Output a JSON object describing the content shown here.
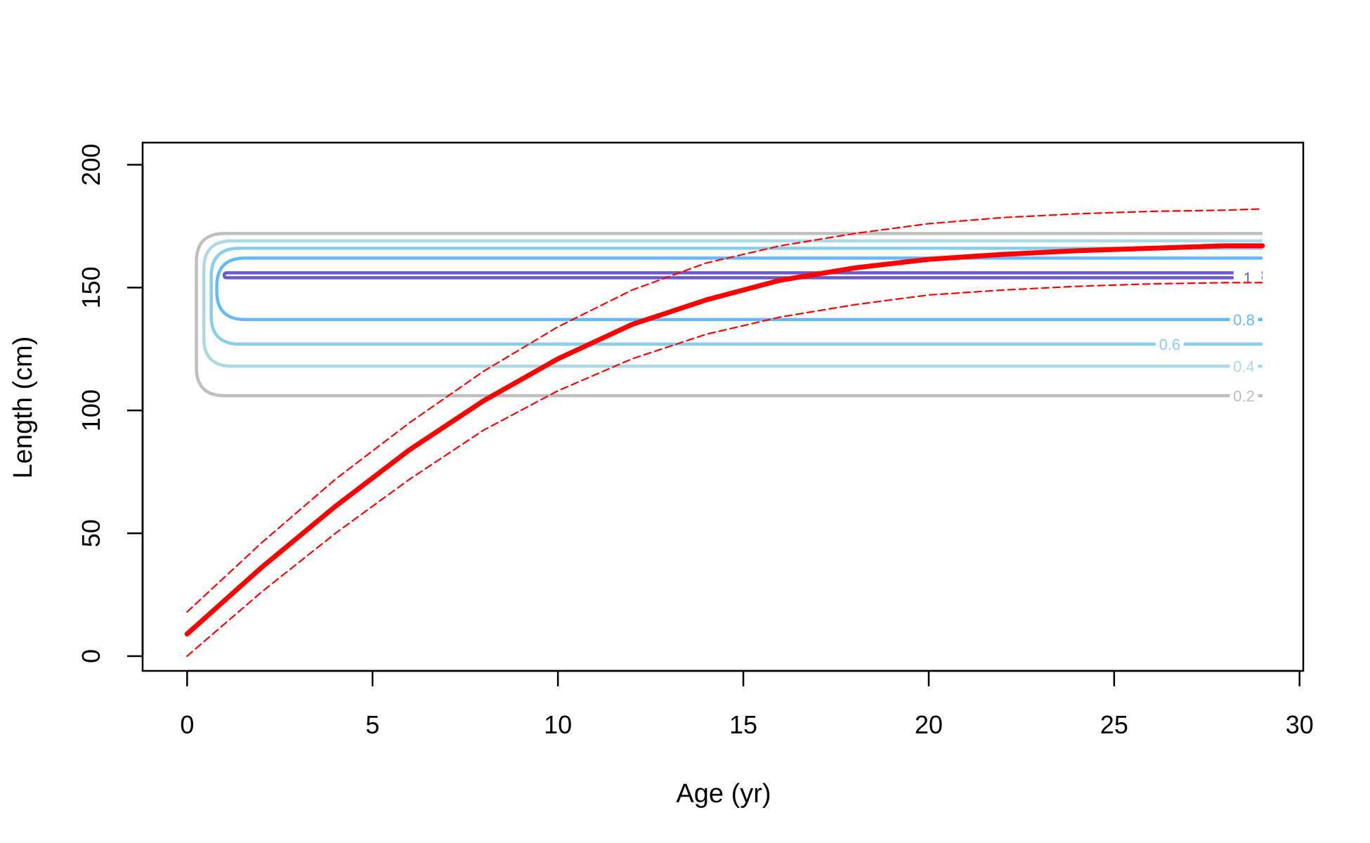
{
  "chart_data": {
    "type": "line",
    "xlabel": "Age (yr)",
    "ylabel": "Length (cm)",
    "xlim": [
      -1.2,
      30.1
    ],
    "ylim": [
      -6,
      209
    ],
    "xticks": [
      0,
      5,
      10,
      15,
      20,
      25,
      30
    ],
    "yticks": [
      0,
      50,
      100,
      150,
      200
    ],
    "grid": false,
    "series": [
      {
        "role": "mean",
        "color": "#ff0000",
        "style": "solid",
        "x": [
          0,
          2,
          4,
          6,
          8,
          10,
          12,
          14,
          16,
          18,
          20,
          22,
          24,
          26,
          28,
          29
        ],
        "y": [
          9,
          36,
          61,
          84,
          104,
          121,
          135,
          145,
          153,
          158,
          161.5,
          163.5,
          165,
          166,
          167,
          167
        ]
      },
      {
        "role": "upper",
        "color": "#ff0000",
        "style": "dashed",
        "x": [
          0,
          2,
          4,
          6,
          8,
          10,
          12,
          14,
          16,
          18,
          20,
          22,
          24,
          26,
          28,
          29
        ],
        "y": [
          18,
          46,
          72,
          95,
          116,
          134,
          149,
          160,
          167,
          172,
          176,
          178.5,
          180,
          181,
          181.5,
          182
        ]
      },
      {
        "role": "lower",
        "color": "#ff0000",
        "style": "dashed",
        "x": [
          0,
          2,
          4,
          6,
          8,
          10,
          12,
          14,
          16,
          18,
          20,
          22,
          24,
          26,
          28,
          29
        ],
        "y": [
          0,
          26,
          50,
          72,
          92,
          108,
          121,
          131,
          138,
          143,
          147,
          149,
          150.5,
          151.5,
          152,
          152
        ]
      }
    ],
    "contours": [
      {
        "level": "0.2",
        "color": "#bebebe",
        "left": 0.25,
        "right": 29,
        "top": 172,
        "bottom": 106,
        "label_age": 28.5
      },
      {
        "level": "0.4",
        "color": "#add8e6",
        "left": 0.45,
        "right": 29,
        "top": 169,
        "bottom": 118,
        "label_age": 28.5
      },
      {
        "level": "0.6",
        "color": "#87ceeb",
        "left": 0.65,
        "right": 29,
        "top": 166,
        "bottom": 127,
        "label_age": 26.5
      },
      {
        "level": "0.8",
        "color": "#63b8ff",
        "left": 0.8,
        "right": 29,
        "top": 162,
        "bottom": 137,
        "label_age": 28.5
      },
      {
        "level": "1",
        "color": "#6a5acd",
        "left": 1.0,
        "right": 29,
        "top": 156,
        "bottom": 154,
        "label_age": 28.6
      }
    ]
  }
}
